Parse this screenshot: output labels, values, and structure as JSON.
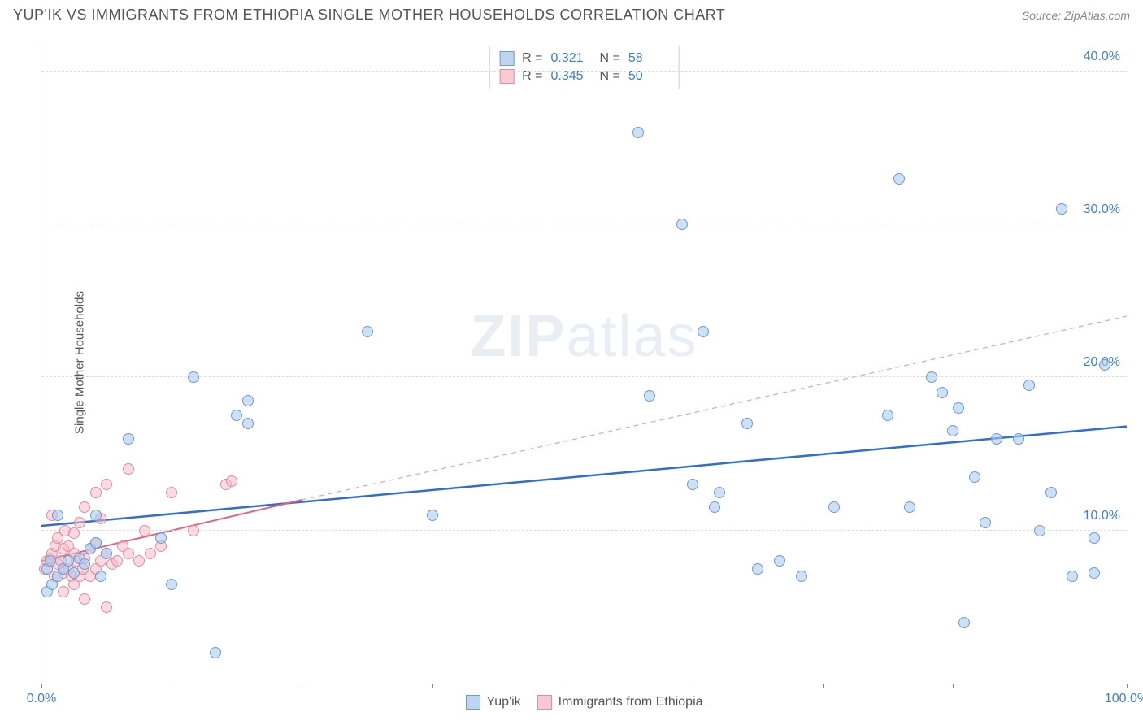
{
  "header": {
    "title": "YUP'IK VS IMMIGRANTS FROM ETHIOPIA SINGLE MOTHER HOUSEHOLDS CORRELATION CHART",
    "source": "Source: ZipAtlas.com"
  },
  "chart": {
    "type": "scatter",
    "ylabel": "Single Mother Households",
    "xlim": [
      0,
      100
    ],
    "ylim": [
      0,
      42
    ],
    "xtick_positions": [
      0,
      12,
      24,
      36,
      48,
      60,
      72,
      84,
      100
    ],
    "xtick_labels": {
      "0": "0.0%",
      "100": "100.0%"
    },
    "ytick_positions": [
      10,
      20,
      30,
      40
    ],
    "ytick_labels": {
      "10": "10.0%",
      "20": "20.0%",
      "30": "30.0%",
      "40": "40.0%"
    },
    "grid_color": "#dddddd",
    "background_color": "#ffffff",
    "watermark_text_bold": "ZIP",
    "watermark_text_rest": "atlas",
    "series": {
      "yupik": {
        "label": "Yup'ik",
        "color_fill": "#aecbef",
        "color_stroke": "#6b9bd8",
        "r_label": "R  =",
        "r_value": "0.321",
        "n_label": "N  =",
        "n_value": "58",
        "trend_solid": true,
        "trend_color": "#2f6fd0",
        "trend_y_at_x0": 10.3,
        "trend_y_at_x100": 16.8,
        "points": [
          [
            0.5,
            6.0
          ],
          [
            0.5,
            7.5
          ],
          [
            0.8,
            8.0
          ],
          [
            1.0,
            6.5
          ],
          [
            1.5,
            7.0
          ],
          [
            1.5,
            11.0
          ],
          [
            2.0,
            7.5
          ],
          [
            2.5,
            8.0
          ],
          [
            3.0,
            7.2
          ],
          [
            3.5,
            8.2
          ],
          [
            4.0,
            7.8
          ],
          [
            4.5,
            8.8
          ],
          [
            5.0,
            9.2
          ],
          [
            5.0,
            11.0
          ],
          [
            5.5,
            7.0
          ],
          [
            6.0,
            8.5
          ],
          [
            8.0,
            16.0
          ],
          [
            11.0,
            9.5
          ],
          [
            12.0,
            6.5
          ],
          [
            14.0,
            20.0
          ],
          [
            16.0,
            2.0
          ],
          [
            18.0,
            17.5
          ],
          [
            19.0,
            17.0
          ],
          [
            19.0,
            18.5
          ],
          [
            30.0,
            23.0
          ],
          [
            36.0,
            11.0
          ],
          [
            55.0,
            36.0
          ],
          [
            56.0,
            18.8
          ],
          [
            59.0,
            30.0
          ],
          [
            60.0,
            13.0
          ],
          [
            61.0,
            23.0
          ],
          [
            62.0,
            11.5
          ],
          [
            62.5,
            12.5
          ],
          [
            65.0,
            17.0
          ],
          [
            66.0,
            7.5
          ],
          [
            68.0,
            8.0
          ],
          [
            70.0,
            7.0
          ],
          [
            73.0,
            11.5
          ],
          [
            78.0,
            17.5
          ],
          [
            79.0,
            33.0
          ],
          [
            80.0,
            11.5
          ],
          [
            82.0,
            20.0
          ],
          [
            83.0,
            19.0
          ],
          [
            84.0,
            16.5
          ],
          [
            84.5,
            18.0
          ],
          [
            85.0,
            4.0
          ],
          [
            86.0,
            13.5
          ],
          [
            87.0,
            10.5
          ],
          [
            88.0,
            16.0
          ],
          [
            90.0,
            16.0
          ],
          [
            91.0,
            19.5
          ],
          [
            92.0,
            10.0
          ],
          [
            93.0,
            12.5
          ],
          [
            94.0,
            31.0
          ],
          [
            95.0,
            7.0
          ],
          [
            97.0,
            7.2
          ],
          [
            97.0,
            9.5
          ],
          [
            98.0,
            20.8
          ]
        ]
      },
      "ethiopia": {
        "label": "Immigrants from Ethiopia",
        "color_fill": "#f8bbc8",
        "color_stroke": "#e58ca0",
        "r_label": "R  =",
        "r_value": "0.345",
        "n_label": "N  =",
        "n_value": "50",
        "trend_solid_segment": {
          "x0": 0,
          "y0": 8.0,
          "x1": 24,
          "y1": 12.0
        },
        "trend_dashed_segment": {
          "x0": 24,
          "y0": 12.0,
          "x1": 100,
          "y1": 24.0
        },
        "trend_color_solid": "#e0657f",
        "trend_color_dashed": "#e9a0af",
        "points": [
          [
            0.3,
            7.5
          ],
          [
            0.5,
            8.0
          ],
          [
            0.8,
            8.2
          ],
          [
            1.0,
            8.5
          ],
          [
            1.0,
            11.0
          ],
          [
            1.2,
            7.0
          ],
          [
            1.3,
            9.0
          ],
          [
            1.5,
            7.8
          ],
          [
            1.5,
            9.5
          ],
          [
            1.8,
            8.0
          ],
          [
            2.0,
            6.0
          ],
          [
            2.0,
            7.2
          ],
          [
            2.0,
            8.8
          ],
          [
            2.2,
            10.0
          ],
          [
            2.5,
            7.5
          ],
          [
            2.5,
            9.0
          ],
          [
            2.8,
            7.0
          ],
          [
            3.0,
            6.5
          ],
          [
            3.0,
            8.5
          ],
          [
            3.0,
            9.8
          ],
          [
            3.2,
            8.0
          ],
          [
            3.5,
            7.0
          ],
          [
            3.5,
            10.5
          ],
          [
            3.8,
            7.5
          ],
          [
            4.0,
            5.5
          ],
          [
            4.0,
            8.2
          ],
          [
            4.0,
            11.5
          ],
          [
            4.5,
            7.0
          ],
          [
            4.5,
            8.8
          ],
          [
            5.0,
            7.5
          ],
          [
            5.0,
            9.2
          ],
          [
            5.0,
            12.5
          ],
          [
            5.5,
            8.0
          ],
          [
            5.5,
            10.8
          ],
          [
            6.0,
            5.0
          ],
          [
            6.0,
            8.5
          ],
          [
            6.0,
            13.0
          ],
          [
            6.5,
            7.8
          ],
          [
            7.0,
            8.0
          ],
          [
            7.5,
            9.0
          ],
          [
            8.0,
            8.5
          ],
          [
            8.0,
            14.0
          ],
          [
            9.0,
            8.0
          ],
          [
            9.5,
            10.0
          ],
          [
            10.0,
            8.5
          ],
          [
            11.0,
            9.0
          ],
          [
            12.0,
            12.5
          ],
          [
            14.0,
            10.0
          ],
          [
            17.0,
            13.0
          ],
          [
            17.5,
            13.2
          ]
        ]
      }
    }
  }
}
